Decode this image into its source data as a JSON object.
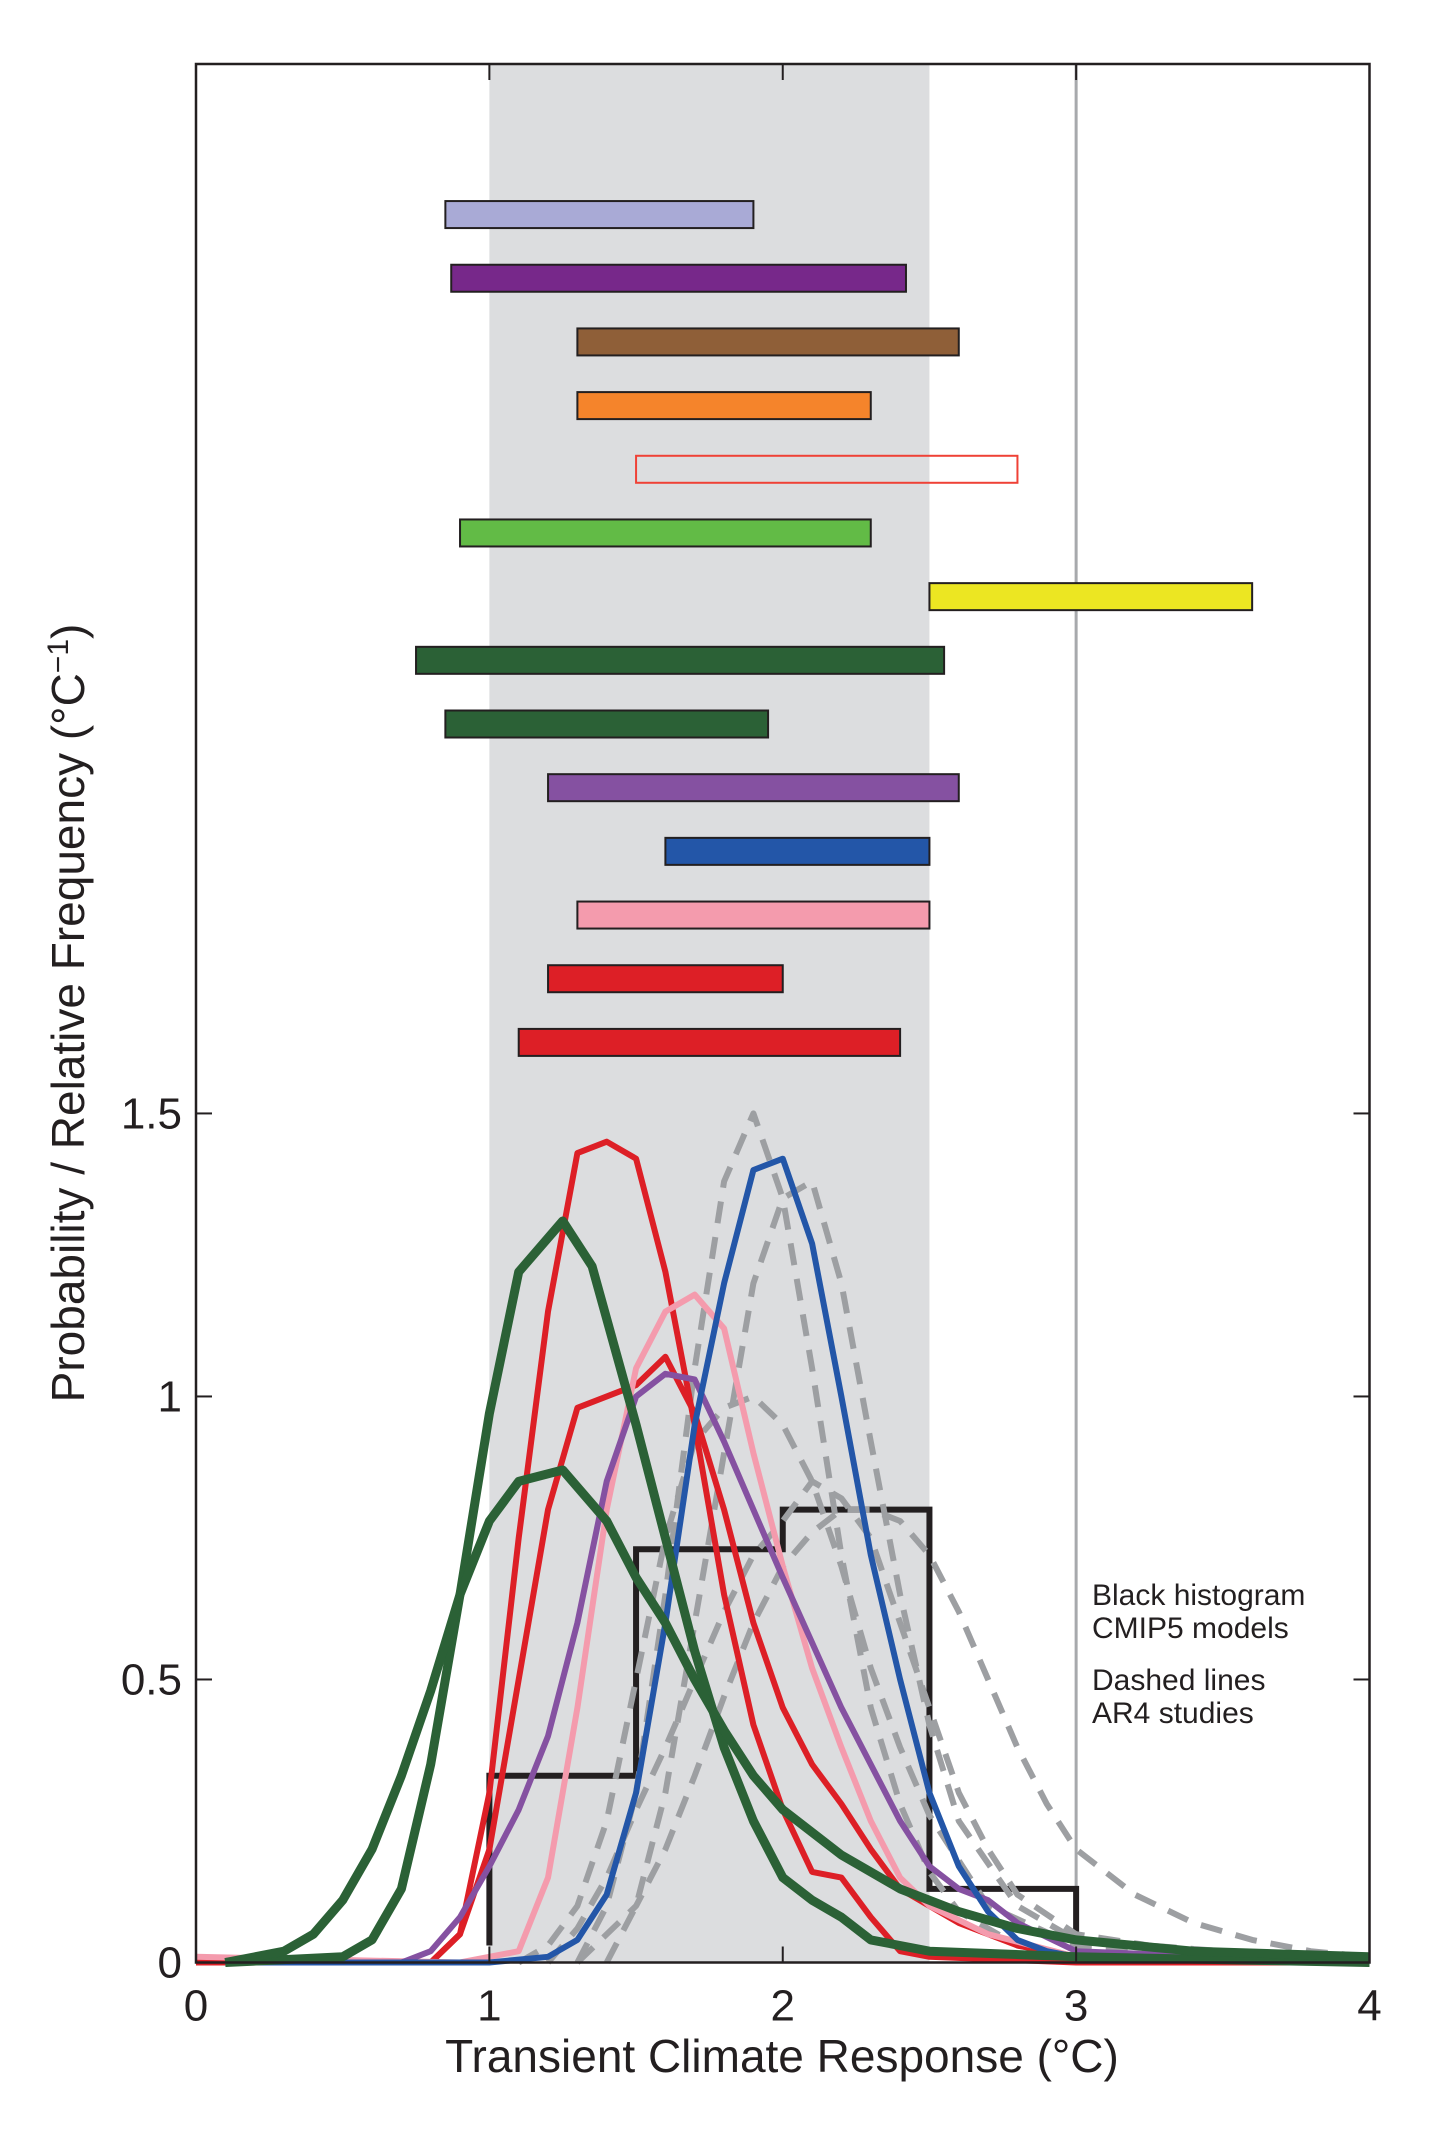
{
  "chart_data": {
    "type": "line",
    "xlabel": "Transient Climate Response (°C)",
    "ylabel": "Probability / Relative Frequency (°C",
    "ylabel_sup": "−1",
    "ylabel_end": ")",
    "xlim": [
      0,
      4
    ],
    "ylim": [
      0,
      3.354
    ],
    "xticks": [
      "0",
      "1",
      "2",
      "3",
      "4"
    ],
    "yticks": [
      "0",
      "0.5",
      "1",
      "1.5"
    ],
    "grid": false,
    "shaded_range": [
      1,
      2.5
    ],
    "shade_color": "#dcdddf",
    "vertical_line": 3,
    "annotations": [
      {
        "lines": [
          "Black histogram",
          "CMIP5 models"
        ]
      },
      {
        "lines": [
          "Dashed lines",
          "AR4 studies"
        ]
      }
    ],
    "ranges": [
      {
        "low": 0.85,
        "high": 1.9,
        "color": "#a9aad6"
      },
      {
        "low": 0.87,
        "high": 2.42,
        "color": "#77288a"
      },
      {
        "low": 1.3,
        "high": 2.6,
        "color": "#8f5f38"
      },
      {
        "low": 1.3,
        "high": 2.3,
        "color": "#f5842b"
      },
      {
        "low": 1.5,
        "high": 2.8,
        "color": "#ef4136",
        "outline": true
      },
      {
        "low": 0.9,
        "high": 2.3,
        "color": "#62bb46"
      },
      {
        "low": 2.5,
        "high": 3.6,
        "color": "#ece622"
      },
      {
        "low": 0.75,
        "high": 2.55,
        "color": "#2b6136"
      },
      {
        "low": 0.85,
        "high": 1.95,
        "color": "#2b6136"
      },
      {
        "low": 1.2,
        "high": 2.6,
        "color": "#8551a1"
      },
      {
        "low": 1.6,
        "high": 2.5,
        "color": "#2356a8"
      },
      {
        "low": 1.3,
        "high": 2.5,
        "color": "#f49bad"
      },
      {
        "low": 1.2,
        "high": 2.0,
        "color": "#dd1f26"
      },
      {
        "low": 1.1,
        "high": 2.4,
        "color": "#dd1f26"
      }
    ],
    "histogram": {
      "color": "#231f20",
      "bins": [
        [
          1,
          1.5,
          0.33
        ],
        [
          1.5,
          2.0,
          0.73
        ],
        [
          2.0,
          2.5,
          0.8
        ],
        [
          2.5,
          3.0,
          0.13
        ]
      ]
    },
    "series": [
      {
        "color": "#9d9fa2",
        "dashed": true,
        "points": [
          [
            1.3,
            0
          ],
          [
            1.4,
            0.1
          ],
          [
            1.5,
            0.3
          ],
          [
            1.6,
            0.65
          ],
          [
            1.7,
            1.05
          ],
          [
            1.8,
            1.38
          ],
          [
            1.9,
            1.5
          ],
          [
            2.0,
            1.35
          ],
          [
            2.1,
            1.05
          ],
          [
            2.2,
            0.72
          ],
          [
            2.3,
            0.45
          ],
          [
            2.4,
            0.28
          ],
          [
            2.5,
            0.16
          ],
          [
            2.6,
            0.09
          ],
          [
            2.8,
            0.03
          ],
          [
            3,
            0.01
          ],
          [
            4,
            0
          ]
        ]
      },
      {
        "color": "#9d9fa2",
        "dashed": true,
        "points": [
          [
            1.4,
            0
          ],
          [
            1.5,
            0.1
          ],
          [
            1.6,
            0.3
          ],
          [
            1.7,
            0.6
          ],
          [
            1.8,
            0.9
          ],
          [
            1.9,
            1.2
          ],
          [
            2.0,
            1.35
          ],
          [
            2.1,
            1.38
          ],
          [
            2.2,
            1.2
          ],
          [
            2.3,
            0.92
          ],
          [
            2.4,
            0.65
          ],
          [
            2.5,
            0.42
          ],
          [
            2.6,
            0.25
          ],
          [
            2.8,
            0.1
          ],
          [
            3,
            0.04
          ],
          [
            4,
            0
          ]
        ]
      },
      {
        "color": "#9d9fa2",
        "dashed": true,
        "points": [
          [
            1.1,
            0
          ],
          [
            1.2,
            0.03
          ],
          [
            1.3,
            0.1
          ],
          [
            1.4,
            0.25
          ],
          [
            1.5,
            0.5
          ],
          [
            1.6,
            0.75
          ],
          [
            1.7,
            0.92
          ],
          [
            1.8,
            0.98
          ],
          [
            1.9,
            1.0
          ],
          [
            2.0,
            0.95
          ],
          [
            2.1,
            0.85
          ],
          [
            2.2,
            0.7
          ],
          [
            2.3,
            0.52
          ],
          [
            2.4,
            0.38
          ],
          [
            2.5,
            0.26
          ],
          [
            2.7,
            0.1
          ],
          [
            3,
            0.03
          ],
          [
            4,
            0
          ]
        ]
      },
      {
        "color": "#9d9fa2",
        "dashed": true,
        "points": [
          [
            1.2,
            0
          ],
          [
            1.3,
            0.06
          ],
          [
            1.4,
            0.15
          ],
          [
            1.5,
            0.27
          ],
          [
            1.6,
            0.38
          ],
          [
            1.7,
            0.5
          ],
          [
            1.8,
            0.62
          ],
          [
            1.9,
            0.72
          ],
          [
            2.0,
            0.78
          ],
          [
            2.1,
            0.85
          ],
          [
            2.2,
            0.82
          ],
          [
            2.3,
            0.75
          ],
          [
            2.4,
            0.6
          ],
          [
            2.5,
            0.45
          ],
          [
            2.6,
            0.3
          ],
          [
            2.7,
            0.2
          ],
          [
            2.8,
            0.12
          ],
          [
            3,
            0.05
          ],
          [
            3.5,
            0.01
          ],
          [
            4,
            0
          ]
        ]
      },
      {
        "color": "#9d9fa2",
        "dashed": true,
        "points": [
          [
            1.3,
            0
          ],
          [
            1.5,
            0.1
          ],
          [
            1.6,
            0.2
          ],
          [
            1.7,
            0.33
          ],
          [
            1.8,
            0.47
          ],
          [
            1.9,
            0.6
          ],
          [
            2.0,
            0.7
          ],
          [
            2.1,
            0.76
          ],
          [
            2.2,
            0.8
          ],
          [
            2.3,
            0.8
          ],
          [
            2.4,
            0.78
          ],
          [
            2.5,
            0.72
          ],
          [
            2.6,
            0.62
          ],
          [
            2.7,
            0.5
          ],
          [
            2.8,
            0.38
          ],
          [
            2.9,
            0.28
          ],
          [
            3.0,
            0.2
          ],
          [
            3.2,
            0.12
          ],
          [
            3.4,
            0.07
          ],
          [
            3.6,
            0.04
          ],
          [
            3.8,
            0.02
          ],
          [
            4,
            0.01
          ]
        ]
      },
      {
        "color": "#dd1f26",
        "points": [
          [
            0,
            0
          ],
          [
            0.8,
            0
          ],
          [
            0.9,
            0.05
          ],
          [
            1.0,
            0.3
          ],
          [
            1.1,
            0.75
          ],
          [
            1.2,
            1.15
          ],
          [
            1.3,
            1.43
          ],
          [
            1.4,
            1.45
          ],
          [
            1.5,
            1.42
          ],
          [
            1.6,
            1.22
          ],
          [
            1.7,
            0.95
          ],
          [
            1.8,
            0.65
          ],
          [
            1.9,
            0.42
          ],
          [
            2.0,
            0.27
          ],
          [
            2.1,
            0.16
          ],
          [
            2.2,
            0.15
          ],
          [
            2.3,
            0.08
          ],
          [
            2.4,
            0.02
          ],
          [
            2.5,
            0.01
          ],
          [
            3,
            0
          ],
          [
            4,
            0
          ]
        ]
      },
      {
        "color": "#dd1f26",
        "points": [
          [
            0.8,
            0
          ],
          [
            0.9,
            0.05
          ],
          [
            1.0,
            0.2
          ],
          [
            1.1,
            0.5
          ],
          [
            1.2,
            0.8
          ],
          [
            1.3,
            0.98
          ],
          [
            1.5,
            1.02
          ],
          [
            1.6,
            1.07
          ],
          [
            1.7,
            0.97
          ],
          [
            1.8,
            0.8
          ],
          [
            1.9,
            0.6
          ],
          [
            2.0,
            0.45
          ],
          [
            2.1,
            0.35
          ],
          [
            2.2,
            0.28
          ],
          [
            2.3,
            0.2
          ],
          [
            2.4,
            0.13
          ],
          [
            2.5,
            0.1
          ],
          [
            2.6,
            0.07
          ],
          [
            2.8,
            0.03
          ],
          [
            3,
            0.01
          ],
          [
            4,
            0
          ]
        ]
      },
      {
        "color": "#f49bad",
        "points": [
          [
            0,
            0.01
          ],
          [
            0.9,
            0
          ],
          [
            1.1,
            0.02
          ],
          [
            1.2,
            0.15
          ],
          [
            1.3,
            0.45
          ],
          [
            1.4,
            0.8
          ],
          [
            1.5,
            1.05
          ],
          [
            1.6,
            1.15
          ],
          [
            1.7,
            1.18
          ],
          [
            1.8,
            1.12
          ],
          [
            1.9,
            0.9
          ],
          [
            2.0,
            0.7
          ],
          [
            2.1,
            0.52
          ],
          [
            2.2,
            0.38
          ],
          [
            2.3,
            0.25
          ],
          [
            2.4,
            0.15
          ],
          [
            2.5,
            0.1
          ],
          [
            2.7,
            0.05
          ],
          [
            3,
            0.01
          ],
          [
            4,
            0
          ]
        ]
      },
      {
        "color": "#8551a1",
        "points": [
          [
            0.7,
            0
          ],
          [
            0.8,
            0.02
          ],
          [
            0.9,
            0.08
          ],
          [
            1.0,
            0.17
          ],
          [
            1.1,
            0.27
          ],
          [
            1.2,
            0.4
          ],
          [
            1.3,
            0.6
          ],
          [
            1.4,
            0.85
          ],
          [
            1.5,
            1.0
          ],
          [
            1.6,
            1.04
          ],
          [
            1.7,
            1.03
          ],
          [
            1.8,
            0.92
          ],
          [
            1.9,
            0.8
          ],
          [
            2.0,
            0.68
          ],
          [
            2.2,
            0.45
          ],
          [
            2.4,
            0.25
          ],
          [
            2.5,
            0.17
          ],
          [
            2.6,
            0.13
          ],
          [
            2.7,
            0.11
          ],
          [
            2.8,
            0.07
          ],
          [
            3,
            0.02
          ],
          [
            4,
            0
          ]
        ]
      },
      {
        "color": "#2356a8",
        "points": [
          [
            0.1,
            0
          ],
          [
            1.0,
            0
          ],
          [
            1.2,
            0.01
          ],
          [
            1.3,
            0.04
          ],
          [
            1.4,
            0.12
          ],
          [
            1.5,
            0.3
          ],
          [
            1.6,
            0.6
          ],
          [
            1.7,
            0.95
          ],
          [
            1.8,
            1.2
          ],
          [
            1.9,
            1.4
          ],
          [
            2.0,
            1.42
          ],
          [
            2.1,
            1.27
          ],
          [
            2.2,
            1.0
          ],
          [
            2.3,
            0.72
          ],
          [
            2.4,
            0.5
          ],
          [
            2.5,
            0.3
          ],
          [
            2.6,
            0.17
          ],
          [
            2.7,
            0.09
          ],
          [
            2.8,
            0.04
          ],
          [
            2.9,
            0.02
          ],
          [
            3.0,
            0.01
          ],
          [
            4,
            0
          ]
        ]
      },
      {
        "color": "#2b6136",
        "thick": true,
        "points": [
          [
            0.1,
            0
          ],
          [
            0.5,
            0.01
          ],
          [
            0.6,
            0.04
          ],
          [
            0.7,
            0.13
          ],
          [
            0.8,
            0.35
          ],
          [
            0.9,
            0.65
          ],
          [
            1.0,
            0.97
          ],
          [
            1.1,
            1.22
          ],
          [
            1.25,
            1.31
          ],
          [
            1.35,
            1.23
          ],
          [
            1.5,
            0.95
          ],
          [
            1.6,
            0.75
          ],
          [
            1.7,
            0.55
          ],
          [
            1.8,
            0.38
          ],
          [
            1.9,
            0.25
          ],
          [
            2.0,
            0.15
          ],
          [
            2.1,
            0.11
          ],
          [
            2.2,
            0.08
          ],
          [
            2.3,
            0.04
          ],
          [
            2.5,
            0.02
          ],
          [
            3,
            0.01
          ],
          [
            4,
            0
          ]
        ]
      },
      {
        "color": "#2b6136",
        "thick": true,
        "points": [
          [
            0.1,
            0
          ],
          [
            0.3,
            0.02
          ],
          [
            0.4,
            0.05
          ],
          [
            0.5,
            0.11
          ],
          [
            0.6,
            0.2
          ],
          [
            0.7,
            0.33
          ],
          [
            0.8,
            0.48
          ],
          [
            0.9,
            0.65
          ],
          [
            1.0,
            0.78
          ],
          [
            1.1,
            0.85
          ],
          [
            1.25,
            0.87
          ],
          [
            1.4,
            0.78
          ],
          [
            1.5,
            0.68
          ],
          [
            1.6,
            0.6
          ],
          [
            1.7,
            0.5
          ],
          [
            1.8,
            0.41
          ],
          [
            1.9,
            0.33
          ],
          [
            2.0,
            0.27
          ],
          [
            2.2,
            0.19
          ],
          [
            2.4,
            0.13
          ],
          [
            2.6,
            0.09
          ],
          [
            2.8,
            0.06
          ],
          [
            3,
            0.04
          ],
          [
            3.4,
            0.02
          ],
          [
            4,
            0.01
          ]
        ]
      }
    ]
  }
}
